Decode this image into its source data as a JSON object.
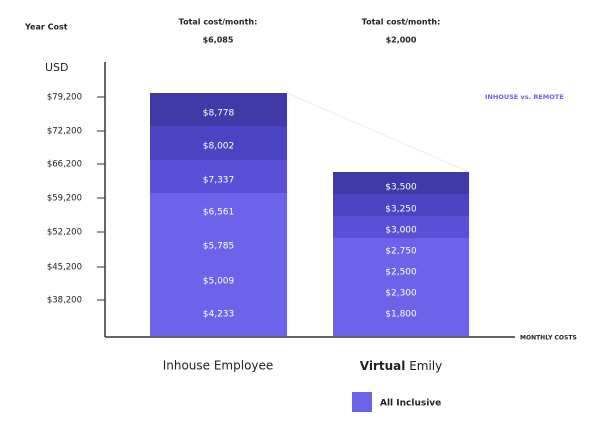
{
  "header": {
    "year_cost": "Year Cost",
    "columns": [
      {
        "heading": "Total cost/month:",
        "amount": "$6,085"
      },
      {
        "heading": "Total cost/month:",
        "amount": "$2,000"
      }
    ]
  },
  "axis": {
    "unit": "USD",
    "ticks": [
      "$79,200",
      "$72,200",
      "$66,200",
      "$59,200",
      "$52,200",
      "$45,200",
      "$38,200"
    ],
    "x_label": "MONTHLY COSTS"
  },
  "annotation": "INHOUSE vs. REMOTE",
  "bars": [
    {
      "label": [
        "Inhouse Employee"
      ],
      "segments": [
        "$8,778",
        "$8,002",
        "$7,337",
        "$6,561",
        "$5,785",
        "$5,009",
        "$4,233"
      ]
    },
    {
      "label": [
        "Virtual",
        "Emily"
      ],
      "segments": [
        "$3,500",
        "$3,250",
        "$3,000",
        "$2,750",
        "$2,500",
        "$2,300",
        "$1,800"
      ]
    }
  ],
  "legend": "All Inclusive"
}
